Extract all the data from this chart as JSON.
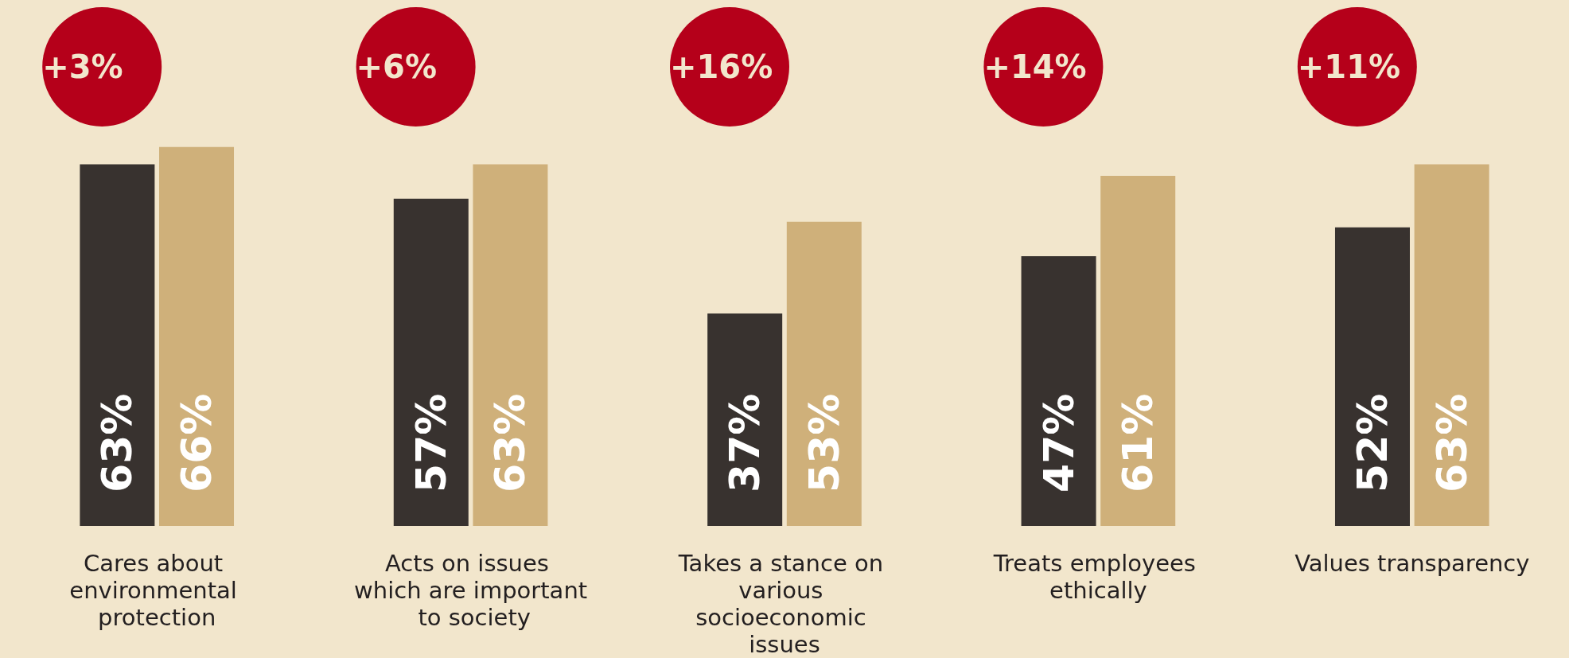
{
  "chart_data": {
    "type": "bar",
    "categories": [
      "Cares about environmental protection",
      "Acts on issues which are important to society",
      "Takes a stance on various socioeconomic issues",
      "Treats employees ethically",
      "Values transparency"
    ],
    "series": [
      {
        "color": "#38322f",
        "values": [
          63,
          57,
          37,
          47,
          52
        ],
        "value_labels": [
          "63%",
          "57%",
          "37%",
          "47%",
          "52%"
        ]
      },
      {
        "color": "#cfb07a",
        "values": [
          66,
          63,
          53,
          61,
          63
        ],
        "value_labels": [
          "66%",
          "63%",
          "53%",
          "61%",
          "63%"
        ]
      }
    ],
    "annotations": [
      "+3%",
      "+6%",
      "+16%",
      "+14%",
      "+11%"
    ],
    "grid": false
  }
}
